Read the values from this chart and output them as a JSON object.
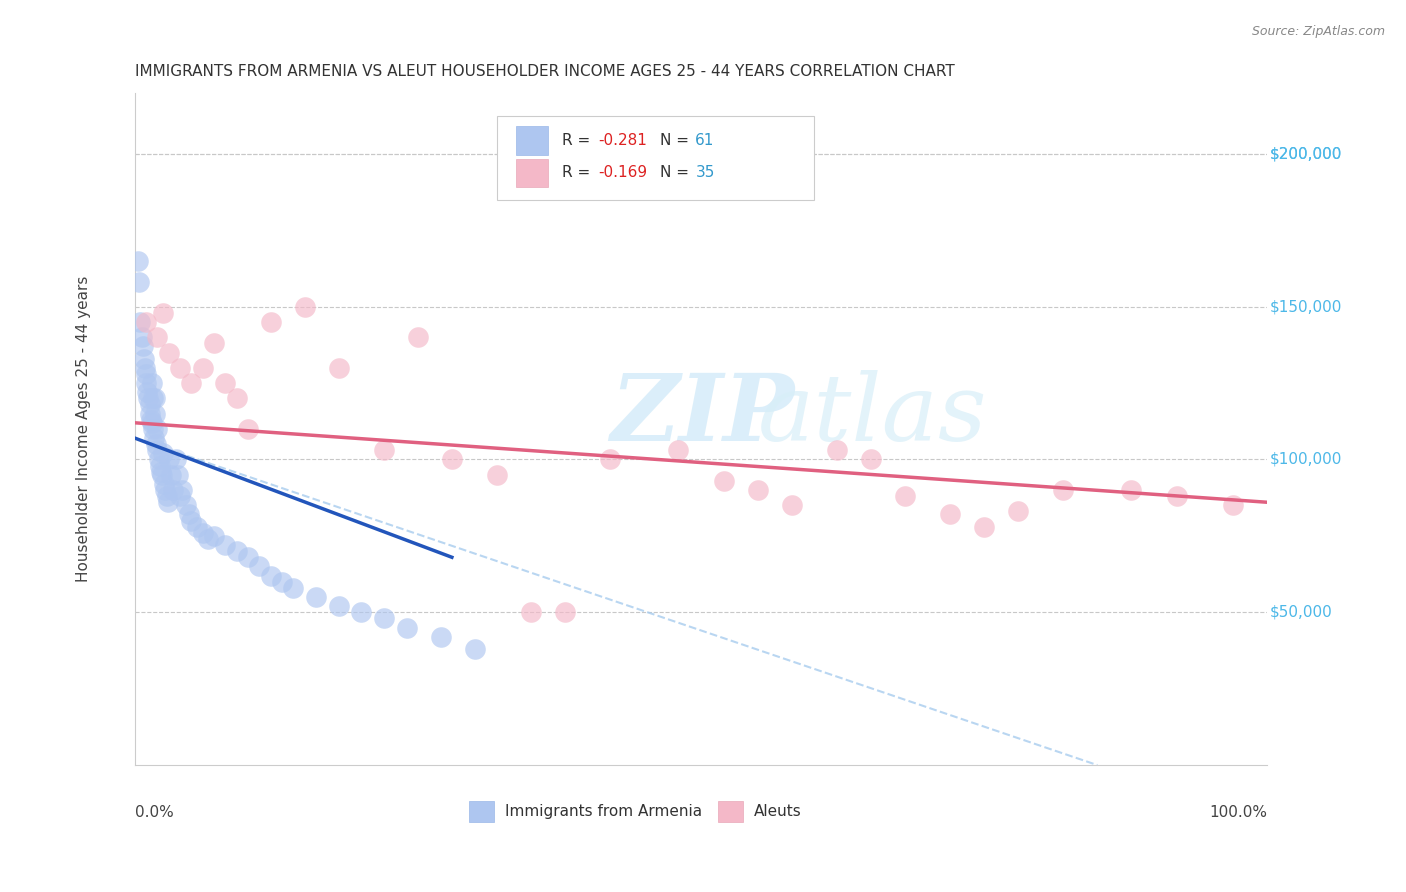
{
  "title": "IMMIGRANTS FROM ARMENIA VS ALEUT HOUSEHOLDER INCOME AGES 25 - 44 YEARS CORRELATION CHART",
  "source": "Source: ZipAtlas.com",
  "ylabel": "Householder Income Ages 25 - 44 years",
  "x_min": 0.0,
  "x_max": 1.0,
  "y_min": 0,
  "y_max": 220000,
  "y_tick_labels": [
    "$50,000",
    "$100,000",
    "$150,000",
    "$200,000"
  ],
  "y_tick_values": [
    50000,
    100000,
    150000,
    200000
  ],
  "legend_color1": "#aec6f0",
  "legend_color2": "#f4b8c8",
  "title_fontsize": 11,
  "source_fontsize": 9,
  "background_color": "#ffffff",
  "grid_color": "#c8c8c8",
  "watermark_zip": "ZIP",
  "watermark_atlas": "atlas",
  "watermark_color_zip": "#cde4f5",
  "watermark_color_atlas": "#d8eef8",
  "armenia_scatter_x": [
    0.003,
    0.004,
    0.005,
    0.006,
    0.007,
    0.008,
    0.009,
    0.01,
    0.01,
    0.011,
    0.012,
    0.013,
    0.013,
    0.014,
    0.015,
    0.015,
    0.016,
    0.016,
    0.017,
    0.018,
    0.018,
    0.019,
    0.02,
    0.02,
    0.021,
    0.022,
    0.023,
    0.024,
    0.025,
    0.026,
    0.027,
    0.028,
    0.029,
    0.03,
    0.032,
    0.034,
    0.036,
    0.038,
    0.04,
    0.042,
    0.045,
    0.048,
    0.05,
    0.055,
    0.06,
    0.065,
    0.07,
    0.08,
    0.09,
    0.1,
    0.11,
    0.12,
    0.13,
    0.14,
    0.16,
    0.18,
    0.2,
    0.22,
    0.24,
    0.27,
    0.3
  ],
  "armenia_scatter_y": [
    165000,
    158000,
    145000,
    140000,
    137000,
    133000,
    130000,
    128000,
    125000,
    122000,
    120000,
    118000,
    115000,
    113000,
    125000,
    112000,
    120000,
    110000,
    107000,
    120000,
    115000,
    105000,
    110000,
    103000,
    100000,
    98000,
    96000,
    95000,
    102000,
    92000,
    90000,
    88000,
    86000,
    100000,
    95000,
    90000,
    100000,
    95000,
    88000,
    90000,
    85000,
    82000,
    80000,
    78000,
    76000,
    74000,
    75000,
    72000,
    70000,
    68000,
    65000,
    62000,
    60000,
    58000,
    55000,
    52000,
    50000,
    48000,
    45000,
    42000,
    38000
  ],
  "aleut_scatter_x": [
    0.01,
    0.02,
    0.025,
    0.03,
    0.04,
    0.05,
    0.06,
    0.07,
    0.08,
    0.09,
    0.1,
    0.12,
    0.15,
    0.18,
    0.22,
    0.25,
    0.28,
    0.32,
    0.35,
    0.38,
    0.42,
    0.48,
    0.52,
    0.55,
    0.58,
    0.62,
    0.65,
    0.68,
    0.72,
    0.75,
    0.78,
    0.82,
    0.88,
    0.92,
    0.97
  ],
  "aleut_scatter_y": [
    145000,
    140000,
    148000,
    135000,
    130000,
    125000,
    130000,
    138000,
    125000,
    120000,
    110000,
    145000,
    150000,
    130000,
    103000,
    140000,
    100000,
    95000,
    50000,
    50000,
    100000,
    103000,
    93000,
    90000,
    85000,
    103000,
    100000,
    88000,
    82000,
    78000,
    83000,
    90000,
    90000,
    88000,
    85000
  ],
  "armenia_line_x": [
    0.0,
    0.28
  ],
  "armenia_line_y": [
    107000,
    68000
  ],
  "aleut_line_x": [
    0.0,
    1.0
  ],
  "aleut_line_y": [
    112000,
    86000
  ],
  "armenia_line_color": "#2255bb",
  "aleut_line_color": "#e06080",
  "armenia_scatter_color": "#aec6f0",
  "aleut_scatter_color": "#f4b8c8",
  "dashed_line_color": "#a8ccee",
  "dashed_line_x": [
    0.0,
    0.85
  ],
  "dashed_line_y": [
    107000,
    0
  ]
}
